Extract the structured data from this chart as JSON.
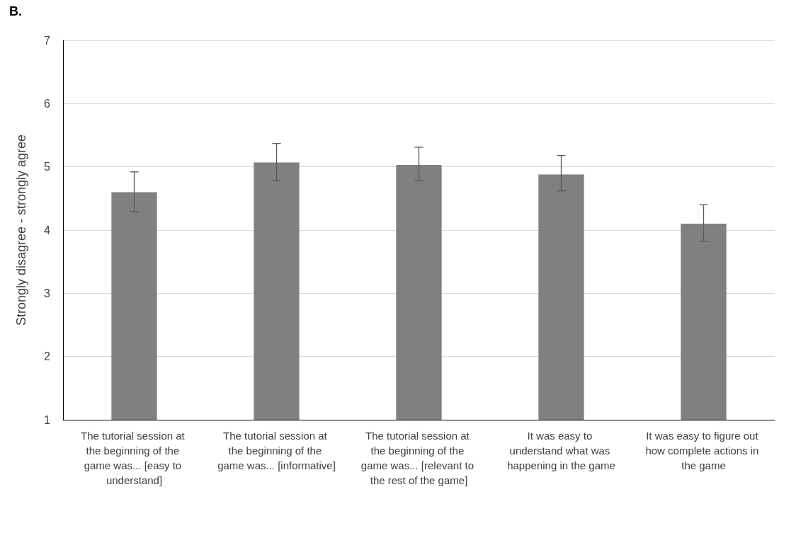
{
  "chart_data": {
    "type": "bar",
    "title": "B.",
    "ylabel": "Strongly disagree - strongly agree",
    "categories": [
      "The tutorial session at the beginning of the game was... [easy to understand]",
      "The tutorial session at the beginning of the game was... [informative]",
      "The tutorial session at the beginning of the game was... [relevant to the rest of the game]",
      "It was easy to understand what was happening in the game",
      "It was easy to figure out how complete actions in the game"
    ],
    "values": [
      4.6,
      5.07,
      5.03,
      4.88,
      4.1
    ],
    "errors": [
      [
        4.29,
        4.92
      ],
      [
        4.78,
        5.37
      ],
      [
        4.78,
        5.31
      ],
      [
        4.62,
        5.18
      ],
      [
        3.82,
        4.4
      ]
    ],
    "color": "#808080",
    "ylim": [
      1,
      7
    ],
    "yticks": [
      1,
      2,
      3,
      4,
      5,
      6,
      7
    ],
    "grid": "y"
  }
}
